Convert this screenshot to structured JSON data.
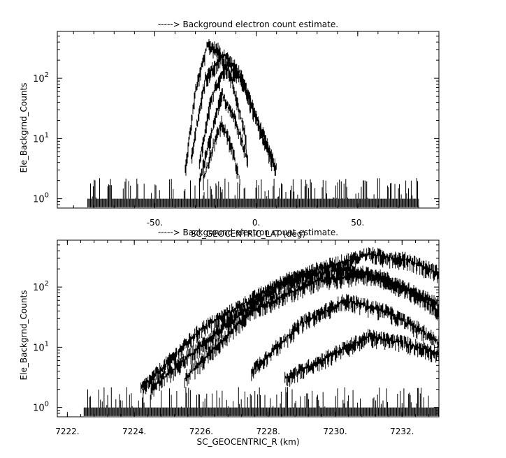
{
  "chart_data": [
    {
      "type": "scatter",
      "title": "-----> Background electron count estimate.",
      "xlabel": "SC_GEOCENTRIC_LAT (deg)",
      "ylabel": "Ele_Backgrnd_Counts",
      "xlim": [
        -98,
        90
      ],
      "ylim": [
        0.7,
        600
      ],
      "yscale": "log",
      "x_ticks": [
        -50,
        0,
        50
      ],
      "x_tick_labels": [
        "-50.",
        "0.",
        "50."
      ],
      "y_ticks": [
        1,
        10,
        100
      ],
      "y_tick_labels": [
        "10^0",
        "10^1",
        "10^2"
      ],
      "grid": false,
      "series": [
        {
          "values": [
            {
              "x": -35,
              "y": 3
            },
            {
              "x": -30,
              "y": 60
            },
            {
              "x": -24,
              "y": 360
            },
            {
              "x": -18,
              "y": 280
            },
            {
              "x": -12,
              "y": 90
            },
            {
              "x": -5,
              "y": 10
            }
          ]
        },
        {
          "values": [
            {
              "x": -32,
              "y": 5
            },
            {
              "x": -25,
              "y": 100
            },
            {
              "x": -16,
              "y": 250
            },
            {
              "x": -8,
              "y": 120
            },
            {
              "x": 0,
              "y": 20
            },
            {
              "x": 8,
              "y": 4
            }
          ]
        },
        {
          "values": [
            {
              "x": -28,
              "y": 4
            },
            {
              "x": -22,
              "y": 50
            },
            {
              "x": -14,
              "y": 170
            },
            {
              "x": -6,
              "y": 80
            },
            {
              "x": 2,
              "y": 15
            },
            {
              "x": 10,
              "y": 3
            }
          ]
        },
        {
          "values": [
            {
              "x": -28,
              "y": 2
            },
            {
              "x": -22,
              "y": 12
            },
            {
              "x": -17,
              "y": 55
            },
            {
              "x": -10,
              "y": 20
            },
            {
              "x": -4,
              "y": 4
            }
          ]
        },
        {
          "values": [
            {
              "x": -26,
              "y": 2
            },
            {
              "x": -21,
              "y": 8
            },
            {
              "x": -17,
              "y": 18
            },
            {
              "x": -12,
              "y": 7
            },
            {
              "x": -8,
              "y": 2
            }
          ]
        }
      ]
    },
    {
      "type": "scatter",
      "title": "-----> Background electron count estimate.",
      "xlabel": "SC_GEOCENTRIC_R (km)",
      "ylabel": "Ele_Backgrnd_Counts",
      "xlim": [
        7221.7,
        7233.1
      ],
      "ylim": [
        0.7,
        600
      ],
      "yscale": "log",
      "x_ticks": [
        7222,
        7224,
        7226,
        7228,
        7230,
        7232
      ],
      "x_tick_labels": [
        "7222.",
        "7224.",
        "7226.",
        "7228.",
        "7230.",
        "7232."
      ],
      "y_ticks": [
        1,
        10,
        100
      ],
      "y_tick_labels": [
        "10^0",
        "10^1",
        "10^2"
      ],
      "grid": false,
      "series": [
        {
          "values": [
            {
              "x": 7224.2,
              "y": 2
            },
            {
              "x": 7226,
              "y": 20
            },
            {
              "x": 7228,
              "y": 90
            },
            {
              "x": 7229.5,
              "y": 200
            },
            {
              "x": 7231,
              "y": 350
            },
            {
              "x": 7232.2,
              "y": 280
            },
            {
              "x": 7233.1,
              "y": 170
            }
          ]
        },
        {
          "values": [
            {
              "x": 7224.5,
              "y": 2
            },
            {
              "x": 7226.3,
              "y": 15
            },
            {
              "x": 7228.5,
              "y": 130
            },
            {
              "x": 7230.2,
              "y": 200
            },
            {
              "x": 7231.5,
              "y": 140
            },
            {
              "x": 7232.5,
              "y": 70
            },
            {
              "x": 7233.1,
              "y": 40
            }
          ]
        },
        {
          "values": [
            {
              "x": 7225.5,
              "y": 3
            },
            {
              "x": 7227.5,
              "y": 40
            },
            {
              "x": 7229.5,
              "y": 130
            },
            {
              "x": 7231,
              "y": 160
            },
            {
              "x": 7232.2,
              "y": 90
            },
            {
              "x": 7233.1,
              "y": 50
            }
          ]
        },
        {
          "values": [
            {
              "x": 7227.5,
              "y": 4
            },
            {
              "x": 7229,
              "y": 25
            },
            {
              "x": 7230.3,
              "y": 60
            },
            {
              "x": 7231.5,
              "y": 40
            },
            {
              "x": 7232.5,
              "y": 20
            },
            {
              "x": 7233.1,
              "y": 12
            }
          ]
        },
        {
          "values": [
            {
              "x": 7228.5,
              "y": 3
            },
            {
              "x": 7230,
              "y": 8
            },
            {
              "x": 7231,
              "y": 15
            },
            {
              "x": 7232,
              "y": 12
            },
            {
              "x": 7233.1,
              "y": 8
            }
          ]
        }
      ]
    }
  ]
}
